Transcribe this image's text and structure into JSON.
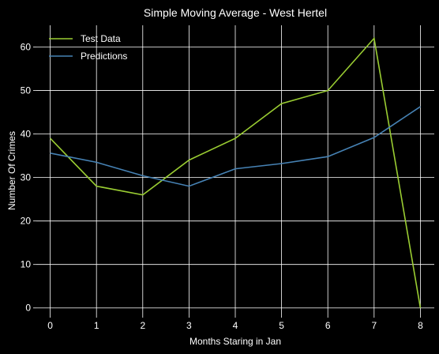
{
  "chart_data": {
    "type": "line",
    "title": "Simple Moving Average - West Hertel",
    "xlabel": "Months Staring in Jan",
    "ylabel": "Number Of Crimes",
    "x": [
      0,
      1,
      2,
      3,
      4,
      5,
      6,
      7,
      8
    ],
    "xlim": [
      -0.3,
      8.3
    ],
    "ylim": [
      -1.5,
      65
    ],
    "xticks": [
      0,
      1,
      2,
      3,
      4,
      5,
      6,
      7,
      8
    ],
    "yticks": [
      0,
      10,
      20,
      30,
      40,
      50,
      60
    ],
    "grid": true,
    "legend_position": "top-left",
    "series": [
      {
        "name": "Test Data",
        "color": "#9acd32",
        "values": [
          39,
          28,
          26,
          34,
          39,
          47,
          50,
          62,
          0
        ]
      },
      {
        "name": "Predictions",
        "color": "#4682b4",
        "values": [
          35.6,
          33.5,
          30.4,
          28,
          32,
          33.2,
          34.8,
          39.2,
          46.3
        ]
      }
    ]
  }
}
